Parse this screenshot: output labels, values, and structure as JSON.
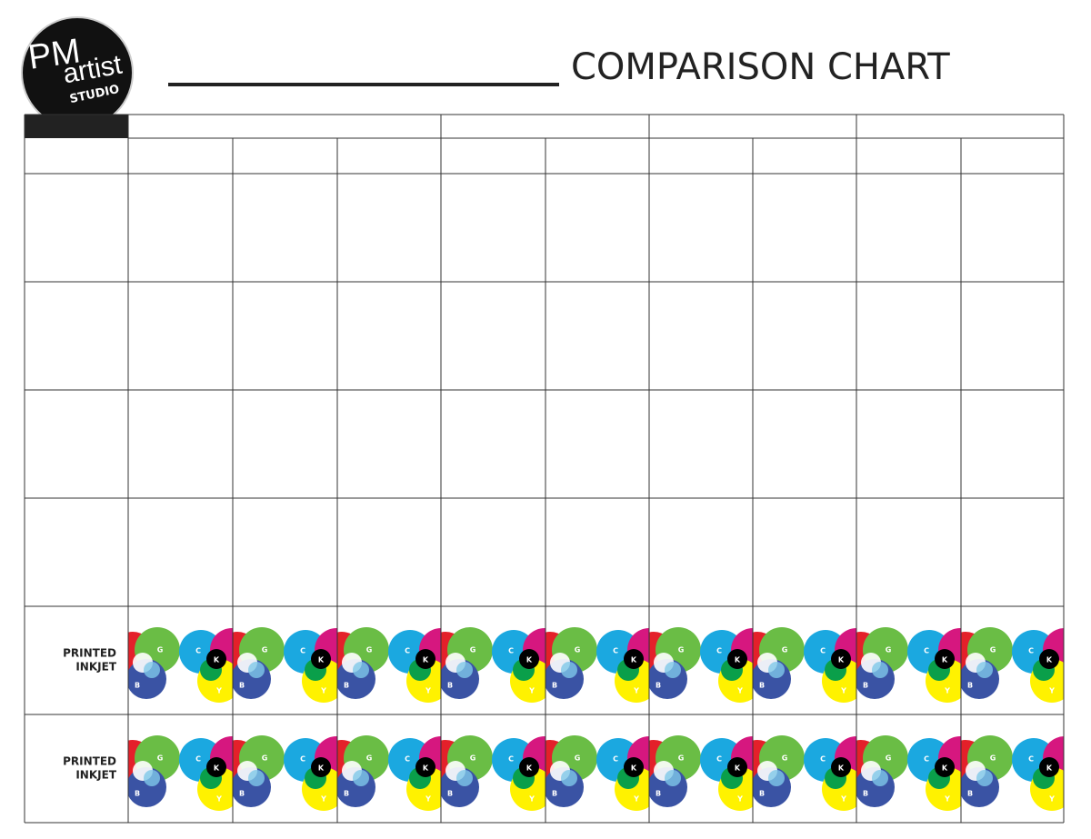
{
  "logo": {
    "lines": [
      "PM",
      "artist",
      "STUDIO"
    ]
  },
  "header": {
    "title": "COMPARISON CHART"
  },
  "table": {
    "row_labels": [
      [
        "PRINTED",
        "INKJET"
      ],
      [
        "PRINTED",
        "INKJET"
      ]
    ]
  },
  "swatch": {
    "letters": [
      "G",
      "B",
      "C",
      "K",
      "Y"
    ]
  }
}
